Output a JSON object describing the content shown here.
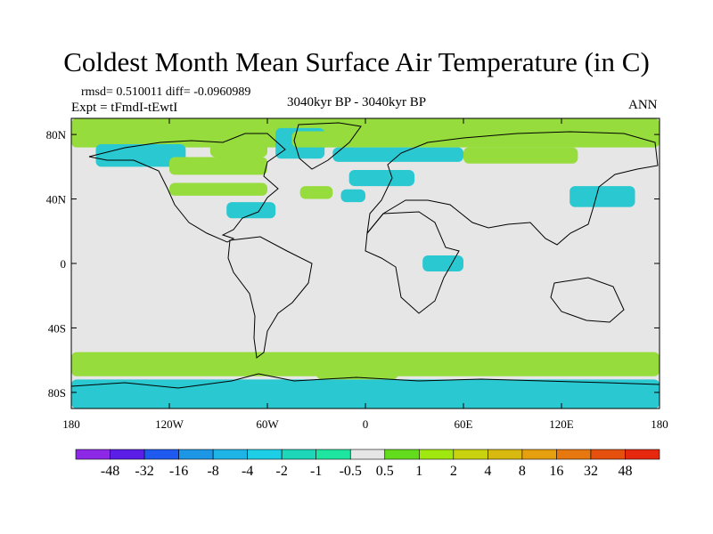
{
  "title": "Coldest Month Mean Surface Air Temperature (in C)",
  "stats": "rmsd= 0.510011 diff= -0.0960989",
  "experiment": "Expt = tFmdI-tEwtI",
  "period": "3040kyr BP - 3040kyr BP",
  "season": "ANN",
  "map": {
    "projection": "cylindrical equidistant",
    "lon_range": [
      -180,
      180
    ],
    "lat_range": [
      -90,
      90
    ],
    "x_ticks": [
      {
        "lon": -180,
        "label": "180"
      },
      {
        "lon": -120,
        "label": "120W"
      },
      {
        "lon": -60,
        "label": "60W"
      },
      {
        "lon": 0,
        "label": "0"
      },
      {
        "lon": 60,
        "label": "60E"
      },
      {
        "lon": 120,
        "label": "120E"
      },
      {
        "lon": 180,
        "label": "180"
      }
    ],
    "y_ticks": [
      {
        "lat": 80,
        "label": "80N"
      },
      {
        "lat": 40,
        "label": "40N"
      },
      {
        "lat": 0,
        "label": "0"
      },
      {
        "lat": -40,
        "label": "40S"
      },
      {
        "lat": -80,
        "label": "80S"
      }
    ],
    "background_color": "#e6e6e6",
    "anomaly_regions": [
      {
        "lon": [
          -180,
          180
        ],
        "lat": [
          72,
          90
        ],
        "color": "#96dc3c"
      },
      {
        "lon": [
          -165,
          -110
        ],
        "lat": [
          60,
          74
        ],
        "color": "#2ac8d0"
      },
      {
        "lon": [
          -120,
          -60
        ],
        "lat": [
          55,
          66
        ],
        "color": "#96dc3c"
      },
      {
        "lon": [
          -95,
          -60
        ],
        "lat": [
          66,
          84
        ],
        "color": "#96dc3c"
      },
      {
        "lon": [
          -55,
          -25
        ],
        "lat": [
          65,
          84
        ],
        "color": "#2ac8d0"
      },
      {
        "lon": [
          -45,
          -20
        ],
        "lat": [
          72,
          82
        ],
        "color": "#96dc3c"
      },
      {
        "lon": [
          -20,
          60
        ],
        "lat": [
          63,
          72
        ],
        "color": "#2ac8d0"
      },
      {
        "lon": [
          60,
          130
        ],
        "lat": [
          62,
          72
        ],
        "color": "#96dc3c"
      },
      {
        "lon": [
          -120,
          -60
        ],
        "lat": [
          42,
          50
        ],
        "color": "#96dc3c"
      },
      {
        "lon": [
          -40,
          -20
        ],
        "lat": [
          40,
          48
        ],
        "color": "#96dc3c"
      },
      {
        "lon": [
          -10,
          30
        ],
        "lat": [
          48,
          58
        ],
        "color": "#2ac8d0"
      },
      {
        "lon": [
          -15,
          0
        ],
        "lat": [
          38,
          46
        ],
        "color": "#2ac8d0"
      },
      {
        "lon": [
          -85,
          -55
        ],
        "lat": [
          28,
          38
        ],
        "color": "#2ac8d0"
      },
      {
        "lon": [
          125,
          165
        ],
        "lat": [
          35,
          48
        ],
        "color": "#2ac8d0"
      },
      {
        "lon": [
          35,
          60
        ],
        "lat": [
          -5,
          5
        ],
        "color": "#2ac8d0"
      },
      {
        "lon": [
          -180,
          180
        ],
        "lat": [
          -70,
          -55
        ],
        "color": "#96dc3c"
      },
      {
        "lon": [
          -180,
          180
        ],
        "lat": [
          -90,
          -72
        ],
        "color": "#2ac8d0"
      },
      {
        "lon": [
          -30,
          20
        ],
        "lat": [
          -72,
          -62
        ],
        "color": "#96dc3c"
      }
    ]
  },
  "colorbar": {
    "colors": [
      "#8c28e6",
      "#5a1ee6",
      "#1e5af0",
      "#1e96e6",
      "#1eb4e6",
      "#1ecde6",
      "#1ed7b9",
      "#1ee6a0",
      "#e6e6e6",
      "#64dc1e",
      "#a0e60f",
      "#c8d20f",
      "#d7b90f",
      "#e6a00f",
      "#e6780f",
      "#e6500f",
      "#e6280f"
    ],
    "labels": [
      "-48",
      "-32",
      "-16",
      "-8",
      "-4",
      "-2",
      "-1",
      "-0.5",
      "0.5",
      "1",
      "2",
      "4",
      "8",
      "16",
      "32",
      "48"
    ]
  }
}
